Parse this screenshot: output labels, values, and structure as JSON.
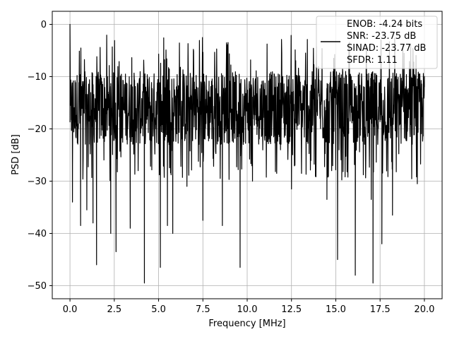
{
  "chart_data": {
    "type": "line",
    "title": "",
    "xlabel": "Frequency [MHz]",
    "ylabel": "PSD [dB]",
    "xlim": [
      -1.0,
      21.0
    ],
    "ylim": [
      -52.5,
      2.5
    ],
    "x_ticks": [
      0.0,
      2.5,
      5.0,
      7.5,
      10.0,
      12.5,
      15.0,
      17.5,
      20.0
    ],
    "x_tick_labels": [
      "0.0",
      "2.5",
      "5.0",
      "7.5",
      "10.0",
      "12.5",
      "15.0",
      "17.5",
      "20.0"
    ],
    "y_ticks": [
      0,
      -10,
      -20,
      -30,
      -40,
      -50
    ],
    "y_tick_labels": [
      "0",
      "−10",
      "−20",
      "−30",
      "−40",
      "−50"
    ],
    "grid": true,
    "legend_position": "top-right",
    "legend": [
      "ENOB: -4.24 bits",
      "SNR: -23.75 dB",
      "SINAD: -23.77 dB",
      "SFDR: 1.11"
    ],
    "series": [
      {
        "color": "#000000",
        "x_range": [
          0.0,
          20.0
        ],
        "noise_floor_db": -15.5,
        "noise_band_db": [
          -23,
          -9
        ],
        "spur_db": [
          0.0,
          -2.0
        ],
        "x": [
          0.0,
          0.08,
          0.14,
          0.6,
          0.95,
          1.3,
          1.5,
          2.3,
          2.6,
          3.4,
          4.2,
          5.1,
          5.5,
          5.8,
          6.6,
          7.5,
          8.6,
          9.6,
          10.3,
          12.5,
          14.5,
          15.1,
          16.1,
          17.0,
          17.1,
          17.6,
          18.2,
          19.6,
          20.0
        ],
        "y": [
          0.0,
          -15.0,
          -34.0,
          -38.5,
          -35.5,
          -38.0,
          -46.0,
          -40.0,
          -43.5,
          -39.0,
          -49.5,
          -46.5,
          -38.5,
          -40.0,
          -31.0,
          -37.5,
          -38.5,
          -46.5,
          -30.0,
          -31.5,
          -33.5,
          -45.0,
          -48.0,
          -33.5,
          -49.5,
          -42.0,
          -36.5,
          -30.5,
          -12.0
        ]
      }
    ]
  }
}
